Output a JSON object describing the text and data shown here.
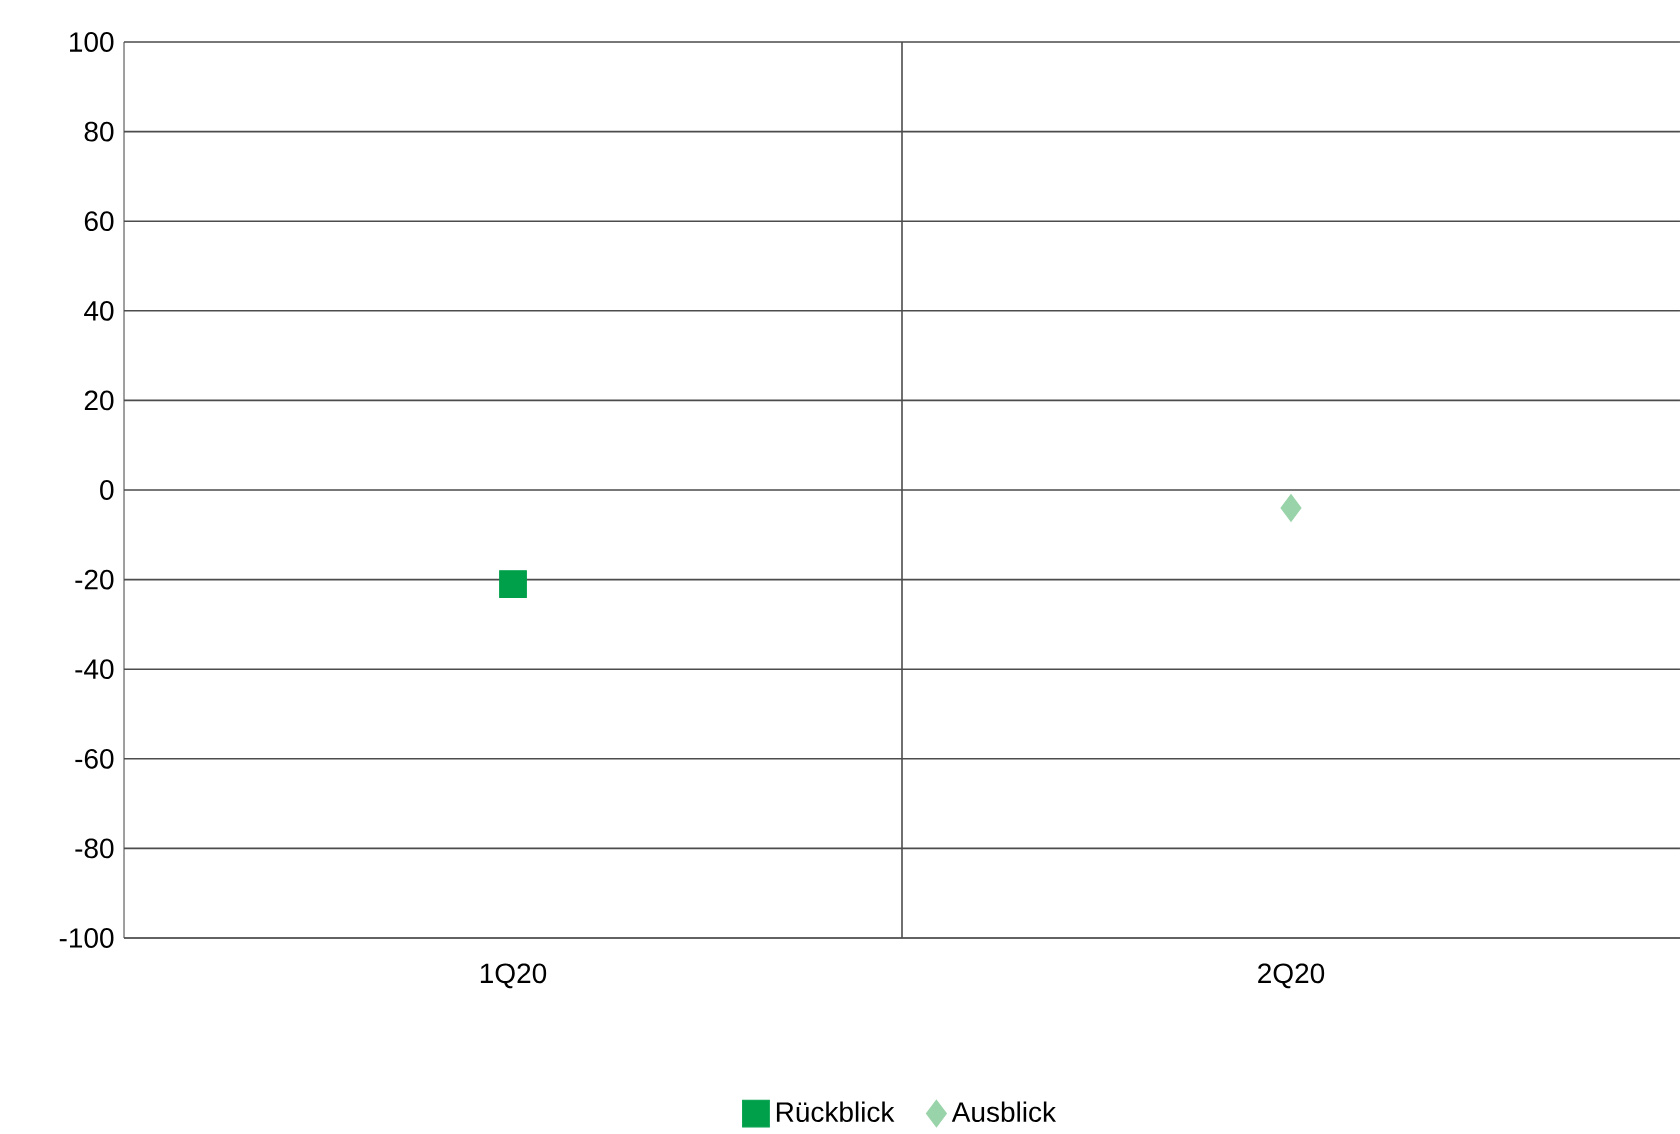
{
  "chart_data": {
    "type": "scatter",
    "categories": [
      "1Q20",
      "2Q20"
    ],
    "series": [
      {
        "name": "Rückblick",
        "color": "#00a04b",
        "marker": "square",
        "values": [
          -21,
          null
        ]
      },
      {
        "name": "Ausblick",
        "color": "#99d3a9",
        "marker": "diamond",
        "values": [
          null,
          -4
        ]
      }
    ],
    "ylim": [
      -100,
      100
    ],
    "yticks": [
      -100,
      -80,
      -60,
      -40,
      -20,
      0,
      20,
      40,
      60,
      80,
      100
    ],
    "grid": true,
    "legend": "bottom"
  }
}
